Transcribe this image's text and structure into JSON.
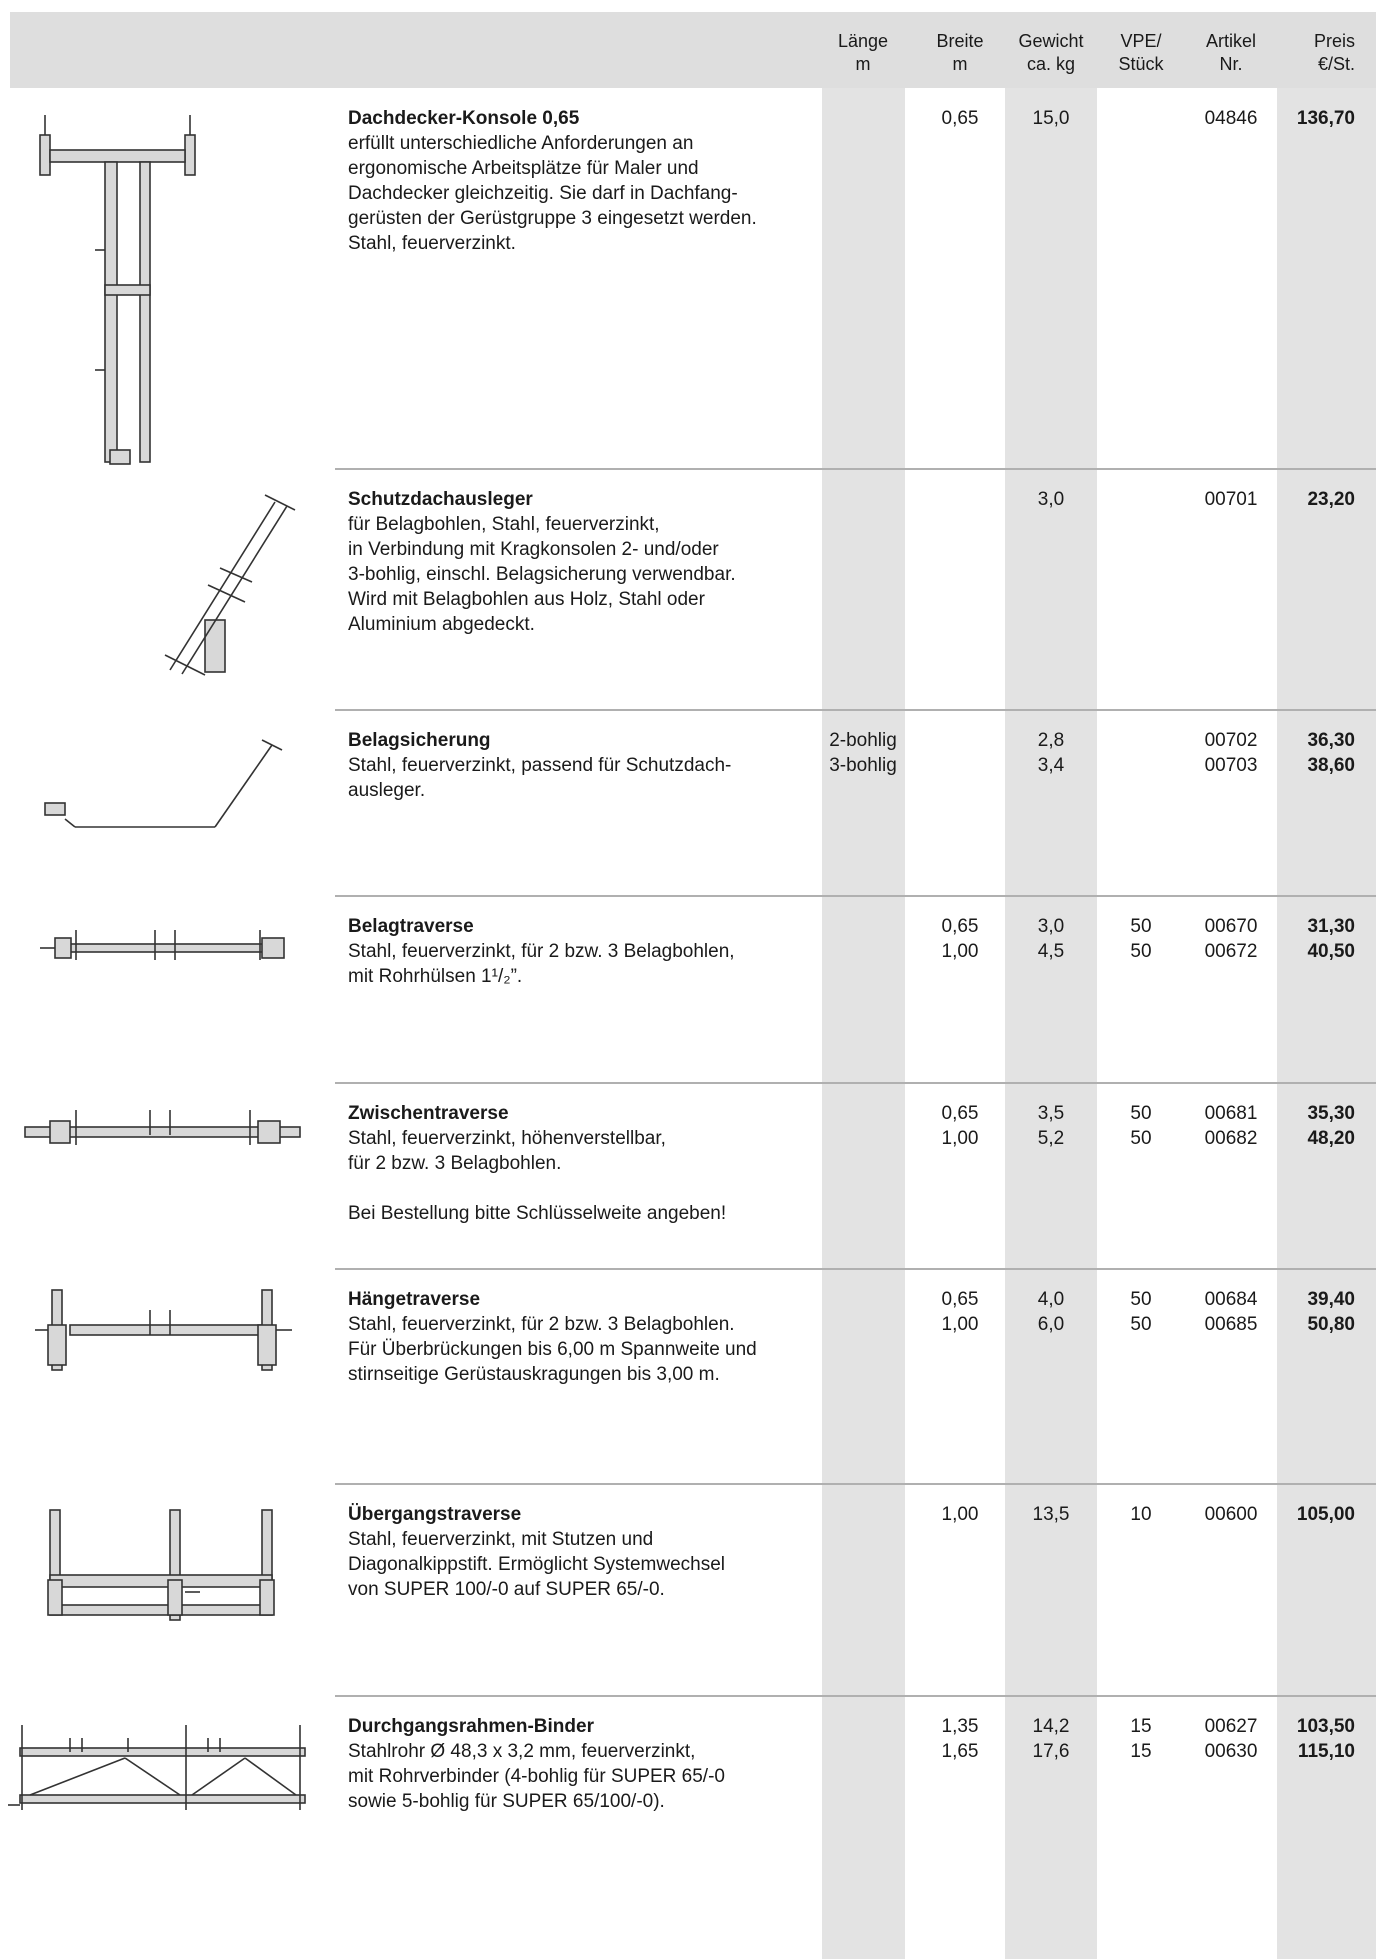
{
  "header": {
    "columns": [
      [
        "Länge",
        "m"
      ],
      [
        "Breite",
        "m"
      ],
      [
        "Gewicht",
        "ca. kg"
      ],
      [
        "VPE/",
        "Stück"
      ],
      [
        "Artikel",
        "Nr."
      ],
      [
        "Preis",
        "€/St."
      ]
    ]
  },
  "rows": [
    {
      "title": "Dachdecker-Konsole 0,65",
      "description": [
        "erfüllt unterschiedliche Anforderungen an",
        "ergonomische Arbeitsplätze für Maler und",
        "Dachdecker gleichzeitig. Sie darf in Dachfang-",
        "gerüsten der Gerüstgruppe 3 eingesetzt werden.",
        "Stahl, feuerverzinkt."
      ],
      "cells": [
        [],
        [
          "0,65"
        ],
        [
          "15,0"
        ],
        [],
        [
          "04846"
        ],
        [
          "136,70"
        ]
      ]
    },
    {
      "title": "Schutzdachausleger",
      "description": [
        "für Belagbohlen, Stahl, feuerverzinkt,",
        "in Verbindung mit Kragkonsolen 2- und/oder",
        "3-bohlig, einschl. Belagsicherung verwendbar.",
        "Wird mit Belagbohlen aus Holz, Stahl oder",
        "Aluminium abgedeckt."
      ],
      "cells": [
        [],
        [],
        [
          "3,0"
        ],
        [],
        [
          "00701"
        ],
        [
          "23,20"
        ]
      ]
    },
    {
      "title": "Belagsicherung",
      "description": [
        "Stahl, feuerverzinkt, passend für Schutzdach-",
        "ausleger."
      ],
      "cells": [
        [
          "2-bohlig",
          "3-bohlig"
        ],
        [],
        [
          "2,8",
          "3,4"
        ],
        [],
        [
          "00702",
          "00703"
        ],
        [
          "36,30",
          "38,60"
        ]
      ]
    },
    {
      "title": "Belagtraverse",
      "description": [
        "Stahl, feuerverzinkt, für 2 bzw. 3 Belagbohlen,",
        "mit Rohrhülsen 1¹/₂”."
      ],
      "cells": [
        [],
        [
          "0,65",
          "1,00"
        ],
        [
          "3,0",
          "4,5"
        ],
        [
          "50",
          "50"
        ],
        [
          "00670",
          "00672"
        ],
        [
          "31,30",
          "40,50"
        ]
      ]
    },
    {
      "title": "Zwischentraverse",
      "description": [
        "Stahl, feuerverzinkt, höhenverstellbar,",
        "für 2 bzw. 3 Belagbohlen."
      ],
      "note": "Bei Bestellung bitte Schlüsselweite angeben!",
      "cells": [
        [],
        [
          "0,65",
          "1,00"
        ],
        [
          "3,5",
          "5,2"
        ],
        [
          "50",
          "50"
        ],
        [
          "00681",
          "00682"
        ],
        [
          "35,30",
          "48,20"
        ]
      ]
    },
    {
      "title": "Hängetraverse",
      "description": [
        "Stahl, feuerverzinkt, für 2 bzw. 3 Belagbohlen.",
        "Für Überbrückungen bis 6,00 m Spannweite und",
        "stirnseitige Gerüstauskragungen bis 3,00 m."
      ],
      "cells": [
        [],
        [
          "0,65",
          "1,00"
        ],
        [
          "4,0",
          "6,0"
        ],
        [
          "50",
          "50"
        ],
        [
          "00684",
          "00685"
        ],
        [
          "39,40",
          "50,80"
        ]
      ]
    },
    {
      "title": "Übergangstraverse",
      "description": [
        "Stahl, feuerverzinkt, mit Stutzen und",
        "Diagonalkippstift. Ermöglicht Systemwechsel",
        "von SUPER 100/-0 auf SUPER 65/-0."
      ],
      "cells": [
        [],
        [
          "1,00"
        ],
        [
          "13,5"
        ],
        [
          "10"
        ],
        [
          "00600"
        ],
        [
          "105,00"
        ]
      ]
    },
    {
      "title": "Durchgangsrahmen-Binder",
      "description": [
        "Stahlrohr Ø 48,3 x 3,2 mm, feuerverzinkt,",
        "mit Rohrverbinder (4-bohlig für SUPER 65/-0",
        "sowie 5-bohlig für SUPER 65/100/-0)."
      ],
      "cells": [
        [],
        [
          "1,35",
          "1,65"
        ],
        [
          "14,2",
          "17,6"
        ],
        [
          "15",
          "15"
        ],
        [
          "00627",
          "00630"
        ],
        [
          "103,50",
          "115,10"
        ]
      ]
    }
  ]
}
